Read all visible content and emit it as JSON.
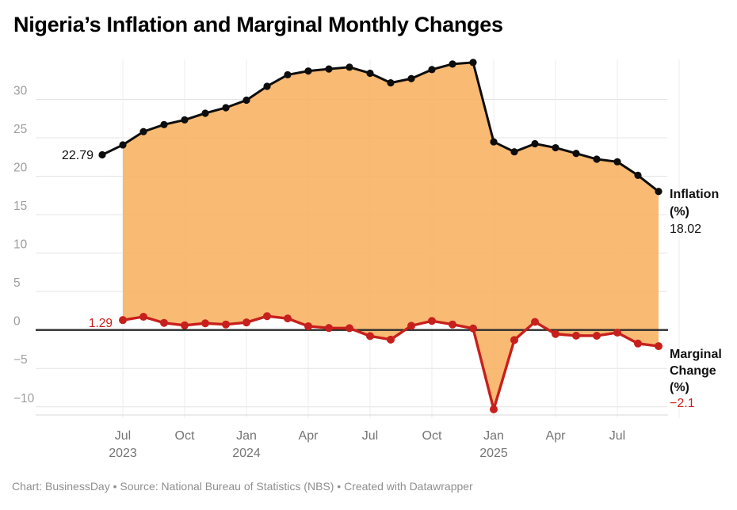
{
  "title": "Nigeria’s Inflation and Marginal Monthly Changes",
  "footer": "Chart: BusinessDay • Source: National Bureau of Statistics (NBS) • Created with Datawrapper",
  "chart_data": {
    "type": "line",
    "title": "Nigeria’s Inflation and Marginal Monthly Changes",
    "grid": true,
    "ylim": [
      -11.5,
      35.5
    ],
    "categories": [
      "Jun 2023",
      "Jul 2023",
      "Aug 2023",
      "Sep 2023",
      "Oct 2023",
      "Nov 2023",
      "Dec 2023",
      "Jan 2024",
      "Feb 2024",
      "Mar 2024",
      "Apr 2024",
      "May 2024",
      "Jun 2024",
      "Jul 2024",
      "Aug 2024",
      "Sep 2024",
      "Oct 2024",
      "Nov 2024",
      "Dec 2024",
      "Jan 2025",
      "Feb 2025",
      "Mar 2025",
      "Apr 2025",
      "May 2025",
      "Jun 2025",
      "Jul 2025",
      "Aug 2025",
      "Sep 2025"
    ],
    "series": [
      {
        "name": "Inflation (%)",
        "start_index": 0,
        "values": [
          22.79,
          24.08,
          25.8,
          26.72,
          27.33,
          28.2,
          28.92,
          29.9,
          31.7,
          33.2,
          33.69,
          33.95,
          34.19,
          33.4,
          32.15,
          32.7,
          33.88,
          34.6,
          34.8,
          24.48,
          23.18,
          24.23,
          23.71,
          22.97,
          22.22,
          21.88,
          20.12,
          18.02
        ]
      },
      {
        "name": "Marginal Change (%)",
        "start_index": 1,
        "values": [
          1.29,
          1.72,
          0.92,
          0.61,
          0.87,
          0.72,
          0.98,
          1.8,
          1.5,
          0.49,
          0.26,
          0.24,
          -0.79,
          -1.25,
          0.55,
          1.18,
          0.72,
          0.2,
          -10.32,
          -1.3,
          1.05,
          -0.52,
          -0.74,
          -0.75,
          -0.34,
          -1.76,
          -2.1
        ]
      }
    ],
    "y_ticks": [
      {
        "v": 30,
        "label": "30"
      },
      {
        "v": 25,
        "label": "25"
      },
      {
        "v": 20,
        "label": "20"
      },
      {
        "v": 15,
        "label": "15"
      },
      {
        "v": 10,
        "label": "10"
      },
      {
        "v": 5,
        "label": "5"
      },
      {
        "v": 0,
        "label": "0"
      },
      {
        "v": -5,
        "label": "−5"
      },
      {
        "v": -10,
        "label": "−10"
      }
    ],
    "x_ticks": [
      {
        "i": 1,
        "month": "Jul",
        "year": "2023"
      },
      {
        "i": 4,
        "month": "Oct"
      },
      {
        "i": 7,
        "month": "Jan",
        "year": "2024"
      },
      {
        "i": 10,
        "month": "Apr"
      },
      {
        "i": 13,
        "month": "Jul"
      },
      {
        "i": 16,
        "month": "Oct"
      },
      {
        "i": 19,
        "month": "Jan",
        "year": "2025"
      },
      {
        "i": 22,
        "month": "Apr"
      },
      {
        "i": 25,
        "month": "Jul"
      },
      {
        "i": 28
      }
    ],
    "annotations": {
      "inflation_start": "22.79",
      "marginal_start": "1.29",
      "inflation_end": {
        "lines": [
          "Inflation",
          "(%)"
        ],
        "value": "18.02"
      },
      "marginal_end": {
        "lines": [
          "Marginal",
          "Change",
          "(%)"
        ],
        "value": "−2.1"
      }
    },
    "colors": {
      "area_fill": "#f8b161",
      "inflation_line": "#0d0d0d",
      "marginal_line": "#c7201c",
      "zero_line": "#2b2b2b",
      "gridline": "#e4e4e4",
      "y_label": "#9e9e9e",
      "x_label": "#757575"
    },
    "legend_position": "right-edge-direct-labels"
  }
}
